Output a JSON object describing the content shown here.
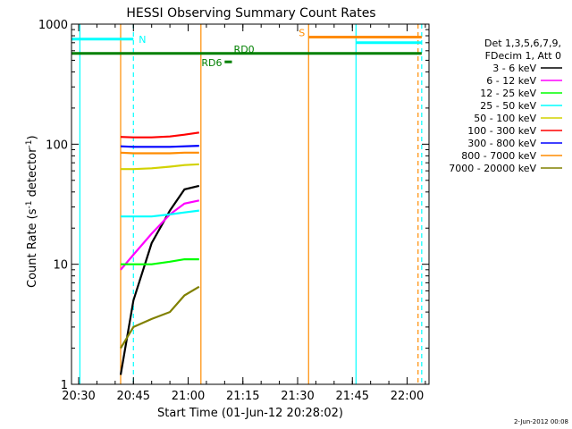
{
  "chart_data": {
    "type": "line",
    "title": "HESSI Observing Summary Count Rates",
    "xlabel": "Start Time (01-Jun-12 20:28:02)",
    "ylabel": "Count Rate (s⁻¹ detector⁻¹)",
    "ylabel_parts": {
      "base": "Count Rate (s",
      "sup1": "-1",
      "mid": " detector",
      "sup2": "-1",
      "end": ")"
    },
    "yscale": "log",
    "xlim": [
      "20:28:02",
      "22:06:00"
    ],
    "ylim": [
      1,
      1000
    ],
    "x_ticks": [
      "20:30",
      "20:45",
      "21:00",
      "21:15",
      "21:30",
      "21:45",
      "22:00"
    ],
    "y_ticks": [
      "1",
      "10",
      "100",
      "1000"
    ],
    "legend_header": [
      "Det 1,3,5,6,7,9,",
      "FDecim 1, Att 0"
    ],
    "legend_position": "right",
    "timestamp": "2-Jun-2012 00:08",
    "series": [
      {
        "name": "3 - 6 keV",
        "color": "#000000",
        "x": [
          "20:41:30",
          "20:45",
          "20:50",
          "20:55",
          "20:59",
          "21:03"
        ],
        "values": [
          1.2,
          5,
          15,
          28,
          42,
          45
        ]
      },
      {
        "name": "6 - 12 keV",
        "color": "#ff00ff",
        "x": [
          "20:41:30",
          "20:45",
          "20:50",
          "20:55",
          "20:59",
          "21:03"
        ],
        "values": [
          9,
          12,
          18,
          26,
          32,
          34
        ]
      },
      {
        "name": "12 - 25 keV",
        "color": "#00ff00",
        "x": [
          "20:41:30",
          "20:45",
          "20:50",
          "20:55",
          "20:59",
          "21:03"
        ],
        "values": [
          10,
          10,
          10,
          10.5,
          11,
          11
        ]
      },
      {
        "name": "25 - 50 keV",
        "color": "#00ffff",
        "x": [
          "20:41:30",
          "20:45",
          "20:50",
          "20:55",
          "20:59",
          "21:03"
        ],
        "values": [
          25,
          25,
          25,
          26,
          27,
          28
        ]
      },
      {
        "name": "50 - 100 keV",
        "color": "#d2d200",
        "x": [
          "20:41:30",
          "20:45",
          "20:50",
          "20:55",
          "20:59",
          "21:03"
        ],
        "values": [
          62,
          62,
          63,
          65,
          67,
          68
        ]
      },
      {
        "name": "100 - 300 keV",
        "color": "#ff0000",
        "x": [
          "20:41:30",
          "20:45",
          "20:50",
          "20:55",
          "20:59",
          "21:03"
        ],
        "values": [
          115,
          114,
          114,
          116,
          120,
          125
        ]
      },
      {
        "name": "300 - 800 keV",
        "color": "#0000ff",
        "x": [
          "20:41:30",
          "20:45",
          "20:50",
          "20:55",
          "20:59",
          "21:03"
        ],
        "values": [
          96,
          95,
          95,
          95,
          96,
          97
        ]
      },
      {
        "name": "800 - 7000 keV",
        "color": "#ff8c00",
        "x": [
          "20:41:30",
          "20:45",
          "20:50",
          "20:55",
          "20:59",
          "21:03"
        ],
        "values": [
          85,
          84,
          84,
          84,
          85,
          85
        ]
      },
      {
        "name": "7000 - 20000 keV",
        "color": "#808000",
        "x": [
          "20:41:30",
          "20:45",
          "20:50",
          "20:55",
          "20:59",
          "21:03"
        ],
        "values": [
          2,
          3,
          3.5,
          4,
          5.5,
          6.5
        ]
      }
    ],
    "flag_bars": [
      {
        "label": "N",
        "color": "#00ffff",
        "start": "20:28:02",
        "end": "20:45:00",
        "value": 750
      },
      {
        "label": "",
        "color": "#00ffff",
        "start": "21:46:00",
        "end": "22:04:00",
        "value": 700
      },
      {
        "label": "S",
        "color": "#ff8c00",
        "start": "21:33:00",
        "end": "22:04:00",
        "value": 780
      },
      {
        "label": "RD0",
        "color": "#008000",
        "start": "20:28:02",
        "end": "22:04:00",
        "value": 570
      },
      {
        "label": "RD6",
        "color": "#008000",
        "start": "21:10:00",
        "end": "21:12:00",
        "value": 485
      }
    ],
    "vertical_lines": [
      {
        "time": "20:30:20",
        "color": "#00ffff",
        "style": "solid"
      },
      {
        "time": "20:45:00",
        "color": "#00ffff",
        "style": "dashed"
      },
      {
        "time": "20:41:30",
        "color": "#ff8c00",
        "style": "solid"
      },
      {
        "time": "21:03:30",
        "color": "#ff8c00",
        "style": "solid"
      },
      {
        "time": "21:33:00",
        "color": "#ff8c00",
        "style": "solid"
      },
      {
        "time": "21:46:00",
        "color": "#00ffff",
        "style": "solid"
      },
      {
        "time": "22:03:00",
        "color": "#ff8c00",
        "style": "dashed"
      },
      {
        "time": "22:04:00",
        "color": "#00ffff",
        "style": "dashed"
      }
    ]
  }
}
